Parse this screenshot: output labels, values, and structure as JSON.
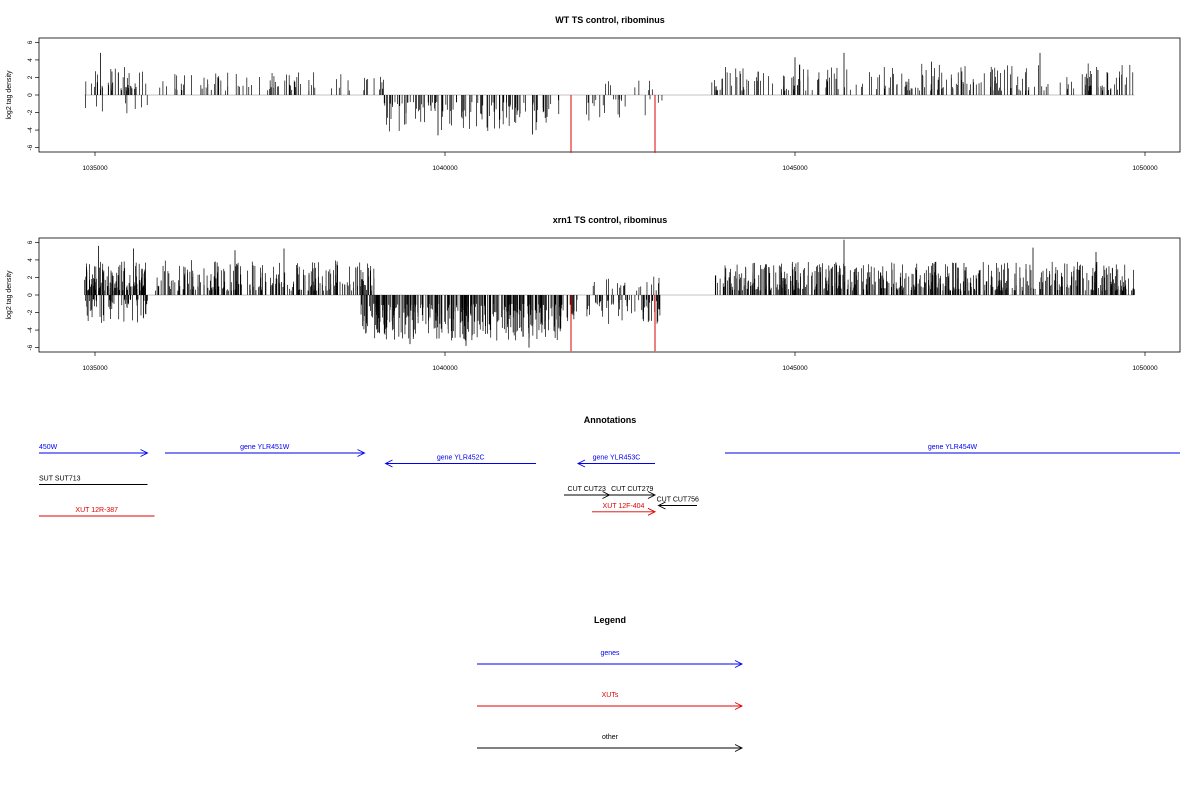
{
  "chart_data": [
    {
      "type": "bar",
      "panel": "wt",
      "title": "WT TS control, ribominus",
      "ylabel": "log2 tag density",
      "ylim": [
        -6.5,
        6.5
      ],
      "yticks": [
        -6,
        -4,
        -2,
        0,
        2,
        4,
        6
      ],
      "xlim": [
        1034200,
        1050500
      ],
      "xticks": [
        1035000,
        1040000,
        1045000,
        1050000
      ],
      "highlight_color": "#dd0000",
      "bar_color": "#000000",
      "highlight_bars": [
        {
          "x": 1041800,
          "y": -6.6
        },
        {
          "x": 1043000,
          "y": -6.6
        }
      ],
      "density_segments": [
        {
          "start": 1034850,
          "end": 1035750,
          "count": 42,
          "min": 0.5,
          "max": 3.2,
          "sign": 1
        },
        {
          "start": 1034850,
          "end": 1035750,
          "count": 8,
          "min": 0.5,
          "max": 2.5,
          "sign": -1
        },
        {
          "start": 1035900,
          "end": 1038700,
          "count": 70,
          "min": 0.5,
          "max": 2.6,
          "sign": 1
        },
        {
          "start": 1038750,
          "end": 1039200,
          "count": 10,
          "min": 0.5,
          "max": 2.2,
          "sign": 1
        },
        {
          "start": 1039100,
          "end": 1041500,
          "count": 110,
          "min": 0.8,
          "max": 4.2,
          "sign": -1
        },
        {
          "start": 1041500,
          "end": 1043200,
          "count": 24,
          "min": 0.5,
          "max": 3.0,
          "sign": -1
        },
        {
          "start": 1042200,
          "end": 1043100,
          "count": 8,
          "min": 0.5,
          "max": 2.0,
          "sign": 1
        },
        {
          "start": 1043800,
          "end": 1049850,
          "count": 230,
          "min": 0.5,
          "max": 3.6,
          "sign": 1
        }
      ],
      "peaks": [
        {
          "x": 1035080,
          "y": 4.8
        },
        {
          "x": 1039900,
          "y": -4.6
        },
        {
          "x": 1041250,
          "y": -4.5
        },
        {
          "x": 1045700,
          "y": 4.8
        },
        {
          "x": 1048500,
          "y": 4.8
        },
        {
          "x": 1045000,
          "y": 4.3
        },
        {
          "x": 1046950,
          "y": 3.8
        }
      ]
    },
    {
      "type": "bar",
      "panel": "xrn1",
      "title": "xrn1 TS control, ribominus",
      "ylabel": "log2 tag density",
      "ylim": [
        -6.5,
        6.5
      ],
      "yticks": [
        -6,
        -4,
        -2,
        0,
        2,
        4,
        6
      ],
      "xlim": [
        1034200,
        1050500
      ],
      "xticks": [
        1035000,
        1040000,
        1045000,
        1050000
      ],
      "highlight_color": "#dd0000",
      "bar_color": "#000000",
      "highlight_bars": [
        {
          "x": 1041800,
          "y": -6.4
        },
        {
          "x": 1043000,
          "y": -6.4
        }
      ],
      "density_segments": [
        {
          "start": 1034850,
          "end": 1035750,
          "count": 120,
          "min": 0.5,
          "max": 4.0,
          "sign": 1
        },
        {
          "start": 1034850,
          "end": 1035750,
          "count": 60,
          "min": 0.5,
          "max": 3.2,
          "sign": -1
        },
        {
          "start": 1035850,
          "end": 1039000,
          "count": 230,
          "min": 0.5,
          "max": 4.0,
          "sign": 1
        },
        {
          "start": 1038800,
          "end": 1041700,
          "count": 320,
          "min": 1.0,
          "max": 5.2,
          "sign": -1
        },
        {
          "start": 1041700,
          "end": 1043100,
          "count": 70,
          "min": 0.5,
          "max": 3.4,
          "sign": -1
        },
        {
          "start": 1042100,
          "end": 1043100,
          "count": 20,
          "min": 0.5,
          "max": 2.2,
          "sign": 1
        },
        {
          "start": 1043850,
          "end": 1049850,
          "count": 560,
          "min": 0.5,
          "max": 3.8,
          "sign": 1
        }
      ],
      "peaks": [
        {
          "x": 1035050,
          "y": 5.6
        },
        {
          "x": 1035550,
          "y": 5.3
        },
        {
          "x": 1037000,
          "y": 5.1
        },
        {
          "x": 1037700,
          "y": 5.3
        },
        {
          "x": 1040300,
          "y": -5.8
        },
        {
          "x": 1041200,
          "y": -6.0
        },
        {
          "x": 1045700,
          "y": 6.3
        },
        {
          "x": 1048400,
          "y": 5.4
        },
        {
          "x": 1049300,
          "y": 4.9
        },
        {
          "x": 1039500,
          "y": -5.6
        }
      ]
    }
  ],
  "annotations": {
    "title": "Annotations",
    "xlim": [
      1034200,
      1050500
    ],
    "features": [
      {
        "label": "450W",
        "start": 1034200,
        "end": 1035750,
        "strand": "+",
        "color": "#0000ee",
        "row": 0
      },
      {
        "label": "gene YLR451W",
        "start": 1036000,
        "end": 1038850,
        "strand": "+",
        "color": "#0000ee",
        "row": 0
      },
      {
        "label": "gene YLR452C",
        "start": 1039150,
        "end": 1041300,
        "strand": "-",
        "color": "#0000ee",
        "row": 1
      },
      {
        "label": "gene YLR453C",
        "start": 1041900,
        "end": 1043000,
        "strand": "-",
        "color": "#0000ee",
        "row": 1
      },
      {
        "label": "gene YLR454W",
        "start": 1044000,
        "end": 1050500,
        "strand": "none",
        "color": "#0000ee",
        "row": 0
      },
      {
        "label": "SUT SUT713",
        "start": 1034200,
        "end": 1035750,
        "strand": "none",
        "color": "#000000",
        "row": 3
      },
      {
        "label": "CUT CUT23",
        "start": 1041700,
        "end": 1042350,
        "strand": "+",
        "color": "#000000",
        "row": 4
      },
      {
        "label": "CUT CUT279",
        "start": 1042350,
        "end": 1043000,
        "strand": "+",
        "color": "#000000",
        "row": 4
      },
      {
        "label": "CUT CUT756",
        "start": 1043050,
        "end": 1043600,
        "strand": "-",
        "color": "#000000",
        "row": 5
      },
      {
        "label": "XUT 12R-387",
        "start": 1034200,
        "end": 1035850,
        "strand": "none",
        "color": "#dd0000",
        "row": 6
      },
      {
        "label": "XUT 12F-404",
        "start": 1042100,
        "end": 1043000,
        "strand": "+",
        "color": "#dd0000",
        "row": 5.6
      }
    ]
  },
  "legend": {
    "title": "Legend",
    "items": [
      {
        "label": "genes",
        "color": "#0000ee"
      },
      {
        "label": "XUTs",
        "color": "#dd0000"
      },
      {
        "label": "other",
        "color": "#000000"
      }
    ]
  }
}
